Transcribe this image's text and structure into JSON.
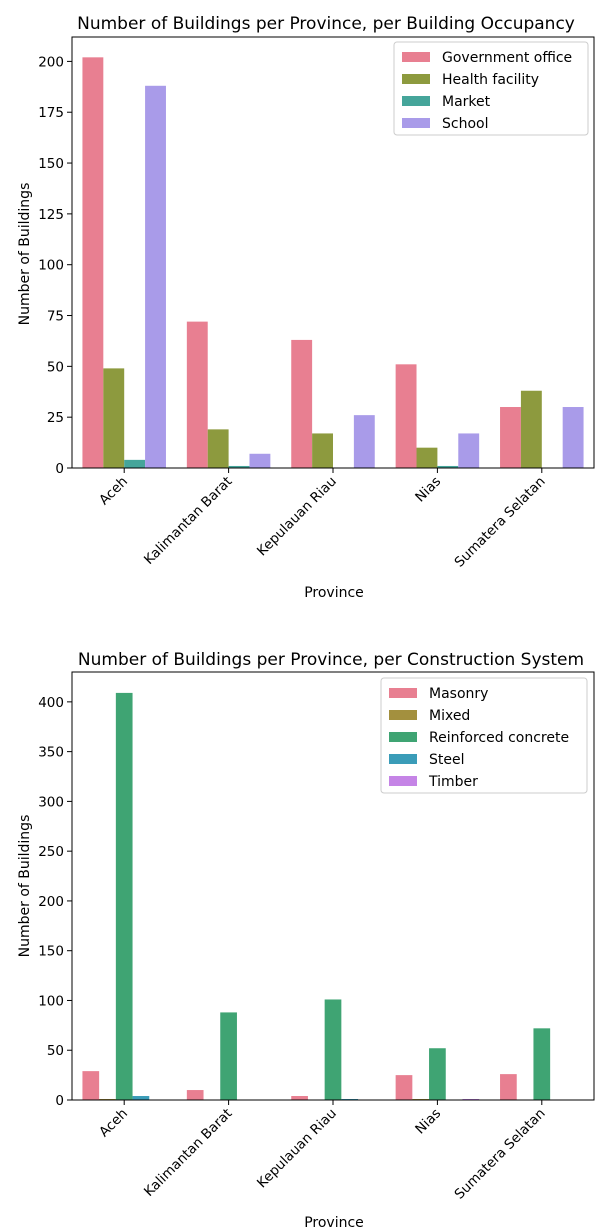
{
  "chart_data": [
    {
      "type": "bar",
      "title": "Number of Buildings per Province, per Building Occupancy",
      "xlabel": "Province",
      "ylabel": "Number of Buildings",
      "ylim": [
        0,
        212
      ],
      "yticks": [
        0,
        25,
        50,
        75,
        100,
        125,
        150,
        175,
        200
      ],
      "categories": [
        "Aceh",
        "Kalimantan Barat",
        "Kepulauan Riau",
        "Nias",
        "Sumatera Selatan"
      ],
      "legend_position": "top-right",
      "grid": false,
      "series": [
        {
          "name": "Government office",
          "color": "#e87f91",
          "values": [
            202,
            72,
            63,
            51,
            30
          ]
        },
        {
          "name": "Health facility",
          "color": "#8d9a3e",
          "values": [
            49,
            19,
            17,
            10,
            38
          ]
        },
        {
          "name": "Market",
          "color": "#45a59a",
          "values": [
            4,
            1,
            0,
            1,
            0
          ]
        },
        {
          "name": "School",
          "color": "#a99be9",
          "values": [
            188,
            7,
            26,
            17,
            30
          ]
        }
      ]
    },
    {
      "type": "bar",
      "title": "Number of Buildings per Province, per Construction System",
      "xlabel": "Province",
      "ylabel": "Number of Buildings",
      "ylim": [
        0,
        430
      ],
      "yticks": [
        0,
        50,
        100,
        150,
        200,
        250,
        300,
        350,
        400
      ],
      "categories": [
        "Aceh",
        "Kalimantan Barat",
        "Kepulauan Riau",
        "Nias",
        "Sumatera Selatan"
      ],
      "legend_position": "top-right",
      "grid": false,
      "series": [
        {
          "name": "Masonry",
          "color": "#e87f91",
          "values": [
            29,
            10,
            4,
            25,
            26
          ]
        },
        {
          "name": "Mixed",
          "color": "#a3903e",
          "values": [
            1,
            0,
            0,
            1,
            0
          ]
        },
        {
          "name": "Reinforced concrete",
          "color": "#3fa473",
          "values": [
            409,
            88,
            101,
            52,
            72
          ]
        },
        {
          "name": "Steel",
          "color": "#3a9cb8",
          "values": [
            4,
            0,
            1,
            0,
            0
          ]
        },
        {
          "name": "Timber",
          "color": "#c584e6",
          "values": [
            0,
            0,
            0,
            1,
            0
          ]
        }
      ]
    }
  ]
}
